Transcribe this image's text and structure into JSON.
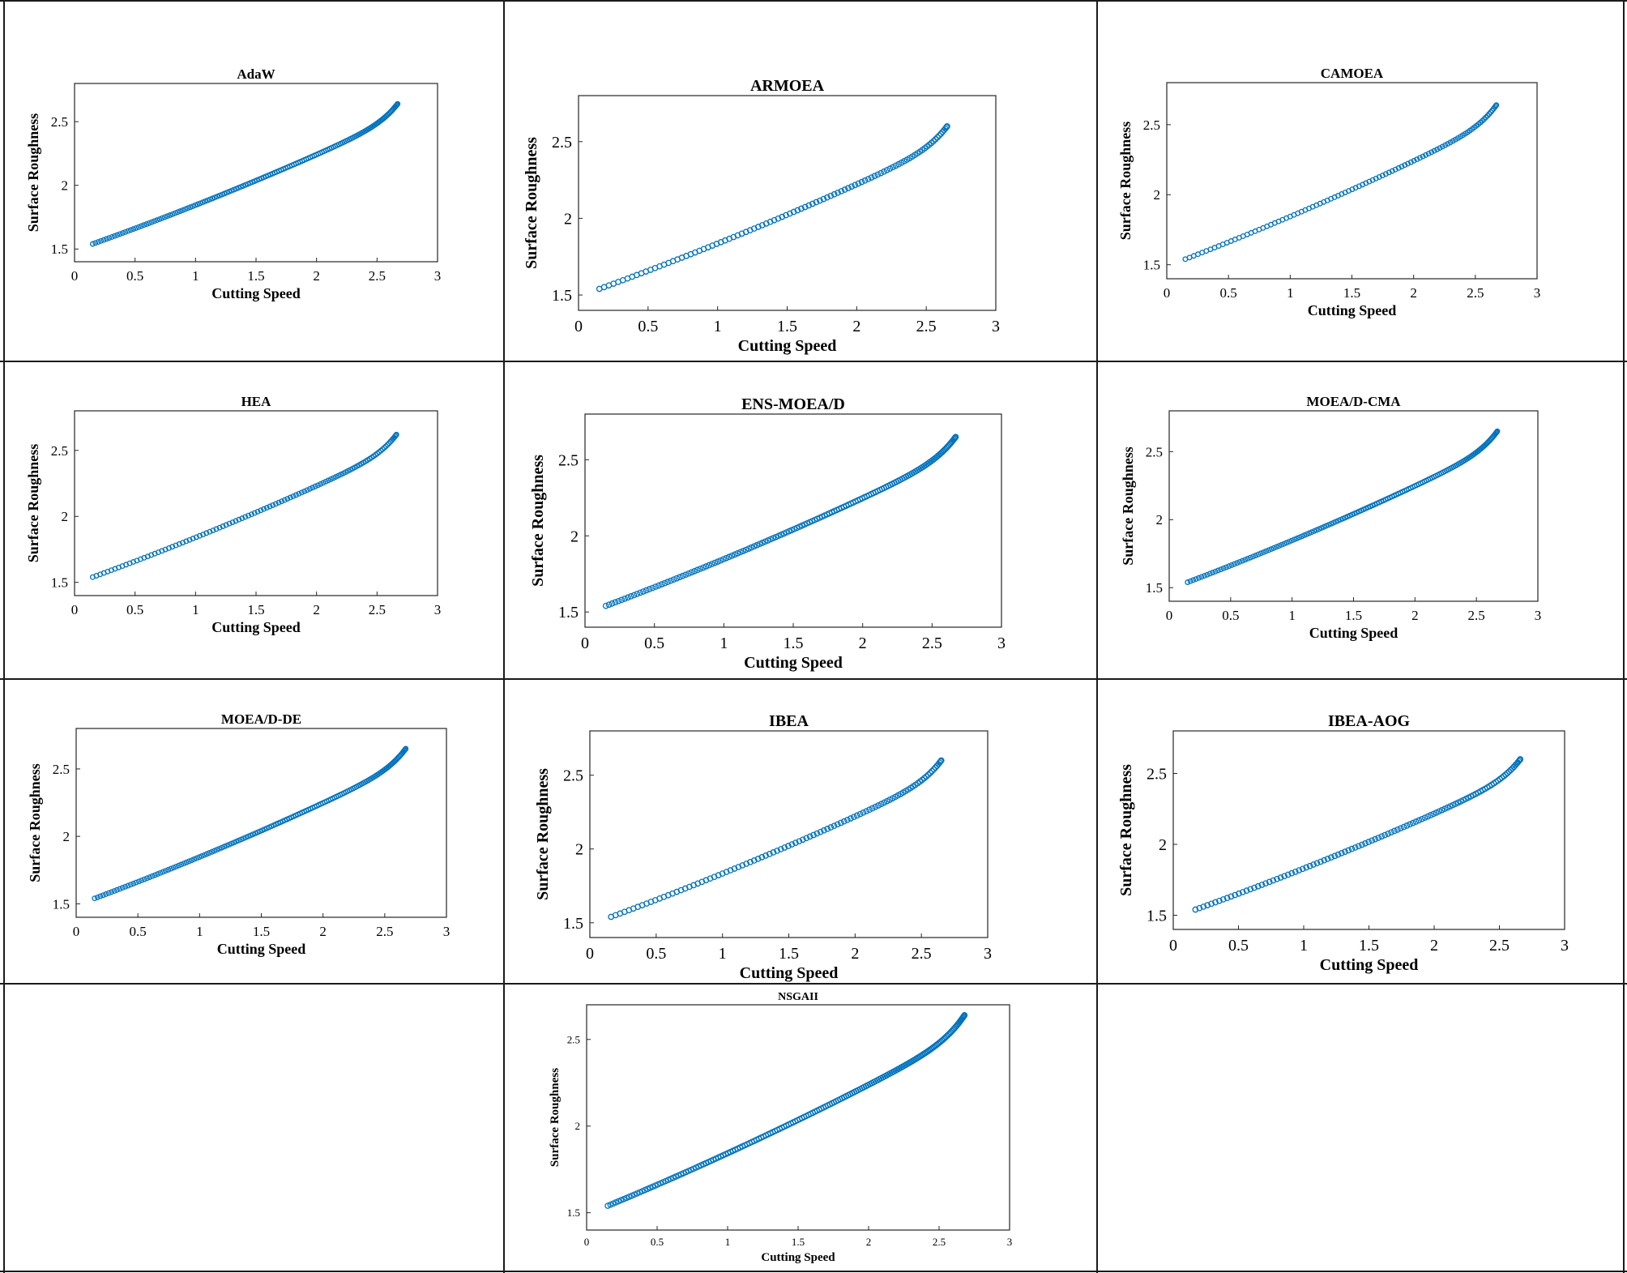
{
  "figure": {
    "point_color": "#0072BD",
    "axis_color": "#262626"
  },
  "chart_data": [
    {
      "type": "scatter",
      "title": "AdaW",
      "xlabel": "Cutting Speed",
      "ylabel": "Surface  Roughness",
      "xlim": [
        0,
        3
      ],
      "ylim": [
        1.4,
        2.8
      ],
      "xticks": [
        "0",
        "0.5",
        "1",
        "1.5",
        "2",
        "2.5",
        "3"
      ],
      "yticks": [
        "1.5",
        "2",
        "2.5"
      ],
      "x_start": 0.15,
      "x_end": 2.67,
      "y_start": 1.54,
      "y_end": 2.64,
      "n_points": 150
    },
    {
      "type": "scatter",
      "title": "ARMOEA",
      "xlabel": "Cutting Speed",
      "ylabel": "Surface  Roughness",
      "xlim": [
        0,
        3
      ],
      "ylim": [
        1.4,
        2.8
      ],
      "xticks": [
        "0",
        "0.5",
        "1",
        "1.5",
        "2",
        "2.5",
        "3"
      ],
      "yticks": [
        "1.5",
        "2",
        "2.5"
      ],
      "x_start": 0.15,
      "x_end": 2.65,
      "y_start": 1.54,
      "y_end": 2.6,
      "n_points": 100
    },
    {
      "type": "scatter",
      "title": "CAMOEA",
      "xlabel": "Cutting Speed",
      "ylabel": "Surface  Roughness",
      "xlim": [
        0,
        3
      ],
      "ylim": [
        1.4,
        2.8
      ],
      "xticks": [
        "0",
        "0.5",
        "1",
        "1.5",
        "2",
        "2.5",
        "3"
      ],
      "yticks": [
        "1.5",
        "2",
        "2.5"
      ],
      "x_start": 0.15,
      "x_end": 2.67,
      "y_start": 1.54,
      "y_end": 2.64,
      "n_points": 100
    },
    {
      "type": "scatter",
      "title": "HEA",
      "xlabel": "Cutting Speed",
      "ylabel": "Surface  Roughness",
      "xlim": [
        0,
        3
      ],
      "ylim": [
        1.4,
        2.8
      ],
      "xticks": [
        "0",
        "0.5",
        "1",
        "1.5",
        "2",
        "2.5",
        "3"
      ],
      "yticks": [
        "1.5",
        "2",
        "2.5"
      ],
      "x_start": 0.15,
      "x_end": 2.66,
      "y_start": 1.54,
      "y_end": 2.62,
      "n_points": 110
    },
    {
      "type": "scatter",
      "title": "ENS-MOEA/D",
      "xlabel": "Cutting Speed",
      "ylabel": "Surface  Roughness",
      "xlim": [
        0,
        3
      ],
      "ylim": [
        1.4,
        2.8
      ],
      "xticks": [
        "0",
        "0.5",
        "1",
        "1.5",
        "2",
        "2.5",
        "3"
      ],
      "yticks": [
        "1.5",
        "2",
        "2.5"
      ],
      "x_start": 0.15,
      "x_end": 2.67,
      "y_start": 1.54,
      "y_end": 2.65,
      "n_points": 150
    },
    {
      "type": "scatter",
      "title": "MOEA/D-CMA",
      "xlabel": "Cutting Speed",
      "ylabel": "Surface  Roughness",
      "xlim": [
        0,
        3
      ],
      "ylim": [
        1.4,
        2.8
      ],
      "xticks": [
        "0",
        "0.5",
        "1",
        "1.5",
        "2",
        "2.5",
        "3"
      ],
      "yticks": [
        "1.5",
        "2",
        "2.5"
      ],
      "x_start": 0.15,
      "x_end": 2.67,
      "y_start": 1.54,
      "y_end": 2.65,
      "n_points": 150
    },
    {
      "type": "scatter",
      "title": "MOEA/D-DE",
      "xlabel": "Cutting Speed",
      "ylabel": "Surface  Roughness",
      "xlim": [
        0,
        3
      ],
      "ylim": [
        1.4,
        2.8
      ],
      "xticks": [
        "0",
        "0.5",
        "1",
        "1.5",
        "2",
        "2.5",
        "3"
      ],
      "yticks": [
        "1.5",
        "2",
        "2.5"
      ],
      "x_start": 0.15,
      "x_end": 2.67,
      "y_start": 1.54,
      "y_end": 2.65,
      "n_points": 150
    },
    {
      "type": "scatter",
      "title": "IBEA",
      "xlabel": "Cutting Speed",
      "ylabel": "Surface  Roughness",
      "xlim": [
        0,
        3
      ],
      "ylim": [
        1.4,
        2.8
      ],
      "xticks": [
        "0",
        "0.5",
        "1",
        "1.5",
        "2",
        "2.5",
        "3"
      ],
      "yticks": [
        "1.5",
        "2",
        "2.5"
      ],
      "x_start": 0.16,
      "x_end": 2.65,
      "y_start": 1.54,
      "y_end": 2.6,
      "n_points": 100
    },
    {
      "type": "scatter",
      "title": "IBEA-AOG",
      "xlabel": "Cutting Speed",
      "ylabel": "Surface  Roughness",
      "xlim": [
        0,
        3
      ],
      "ylim": [
        1.4,
        2.8
      ],
      "xticks": [
        "0",
        "0.5",
        "1",
        "1.5",
        "2",
        "2.5",
        "3"
      ],
      "yticks": [
        "1.5",
        "2",
        "2.5"
      ],
      "x_start": 0.17,
      "x_end": 2.66,
      "y_start": 1.54,
      "y_end": 2.6,
      "n_points": 110
    },
    {
      "type": "scatter",
      "title": "NSGAII",
      "xlabel": "Cutting Speed",
      "ylabel": "Surface  Roughness",
      "xlim": [
        0,
        3
      ],
      "ylim": [
        1.4,
        2.7
      ],
      "xticks": [
        "0",
        "0.5",
        "1",
        "1.5",
        "2",
        "2.5",
        "3"
      ],
      "yticks": [
        "1.5",
        "2",
        "2.5"
      ],
      "x_start": 0.15,
      "x_end": 2.68,
      "y_start": 1.54,
      "y_end": 2.64,
      "n_points": 180
    }
  ]
}
